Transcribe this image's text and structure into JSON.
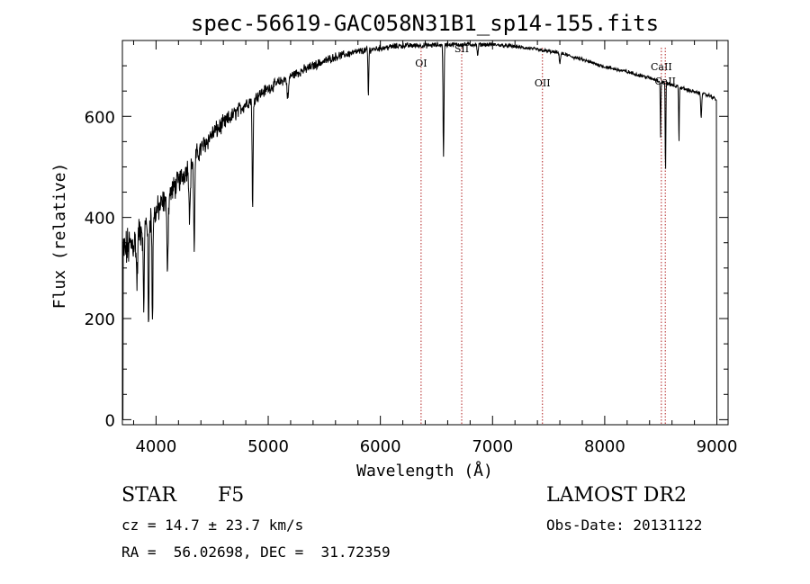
{
  "chart_data": {
    "type": "line",
    "title": "spec-56619-GAC058N31B1_sp14-155.fits",
    "xlabel": "Wavelength (Å)",
    "ylabel": "Flux (relative)",
    "xlim": [
      3700,
      9100
    ],
    "ylim": [
      -10,
      750
    ],
    "x_ticks": [
      4000,
      5000,
      6000,
      7000,
      8000,
      9000
    ],
    "y_ticks": [
      0,
      200,
      400,
      600
    ],
    "grid": false,
    "line_color": "#000000",
    "marker_color": "#b22222",
    "line_markers": [
      {
        "label": "OI",
        "x": 6363
      },
      {
        "label": "SII",
        "x": 6725
      },
      {
        "label": "OII",
        "x": 7445
      },
      {
        "label": "CaII",
        "x": 8505
      },
      {
        "label": "CaII",
        "x": 8540
      }
    ],
    "continuum": [
      [
        3700,
        330
      ],
      [
        3800,
        350
      ],
      [
        3900,
        390
      ],
      [
        4000,
        410
      ],
      [
        4100,
        440
      ],
      [
        4200,
        470
      ],
      [
        4300,
        505
      ],
      [
        4400,
        535
      ],
      [
        4500,
        565
      ],
      [
        4600,
        585
      ],
      [
        4700,
        605
      ],
      [
        4800,
        625
      ],
      [
        4900,
        640
      ],
      [
        5000,
        655
      ],
      [
        5200,
        680
      ],
      [
        5400,
        700
      ],
      [
        5600,
        718
      ],
      [
        5800,
        728
      ],
      [
        6000,
        735
      ],
      [
        6200,
        740
      ],
      [
        6400,
        740
      ],
      [
        6600,
        742
      ],
      [
        6800,
        742
      ],
      [
        7000,
        742
      ],
      [
        7200,
        738
      ],
      [
        7400,
        732
      ],
      [
        7600,
        725
      ],
      [
        7800,
        712
      ],
      [
        8000,
        698
      ],
      [
        8200,
        688
      ],
      [
        8400,
        676
      ],
      [
        8600,
        662
      ],
      [
        8800,
        648
      ],
      [
        8950,
        640
      ],
      [
        9000,
        632
      ]
    ],
    "absorption_features": [
      {
        "x": 3830,
        "depth": 90,
        "width": 8
      },
      {
        "x": 3890,
        "depth": 150,
        "width": 8
      },
      {
        "x": 3933,
        "depth": 220,
        "width": 6
      },
      {
        "x": 3968,
        "depth": 210,
        "width": 6
      },
      {
        "x": 4102,
        "depth": 130,
        "width": 9
      },
      {
        "x": 4300,
        "depth": 100,
        "width": 9
      },
      {
        "x": 4340,
        "depth": 180,
        "width": 7
      },
      {
        "x": 4861,
        "depth": 225,
        "width": 6
      },
      {
        "x": 5175,
        "depth": 40,
        "width": 10
      },
      {
        "x": 5893,
        "depth": 95,
        "width": 5
      },
      {
        "x": 6563,
        "depth": 220,
        "width": 6
      },
      {
        "x": 6867,
        "depth": 25,
        "width": 6
      },
      {
        "x": 7600,
        "depth": 18,
        "width": 8
      },
      {
        "x": 8498,
        "depth": 110,
        "width": 4
      },
      {
        "x": 8542,
        "depth": 180,
        "width": 4
      },
      {
        "x": 8662,
        "depth": 110,
        "width": 4
      },
      {
        "x": 8860,
        "depth": 45,
        "width": 6
      }
    ],
    "noise": {
      "3700": 70,
      "4000": 45,
      "4500": 30,
      "5000": 18,
      "6000": 10,
      "7000": 6,
      "9000": 6
    },
    "edge_drop": {
      "start_value": 0,
      "end_value": 0
    }
  },
  "info": {
    "object_class": "STAR",
    "subclass": "F5",
    "survey": "LAMOST DR2",
    "cz": "cz = 14.7 ± 23.7 km/s",
    "obs_date": "Obs-Date: 20131122",
    "coords": "RA =  56.02698, DEC =  31.72359"
  }
}
